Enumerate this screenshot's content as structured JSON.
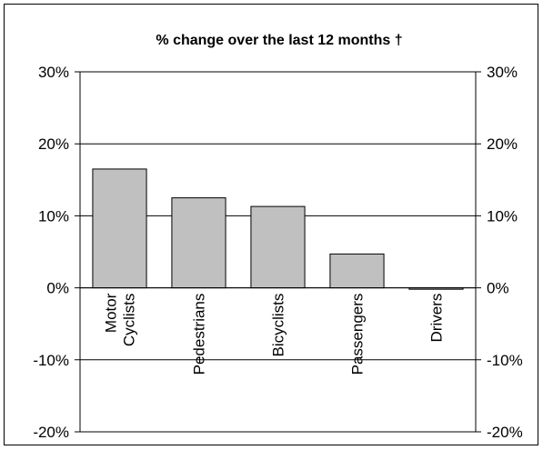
{
  "chart_data": {
    "type": "bar",
    "title": "% change over the last 12 months †",
    "xlabel": "",
    "ylabel": "",
    "categories": [
      [
        "Motor",
        "Cyclists"
      ],
      [
        "Pedestrians"
      ],
      [
        "Bicyclists"
      ],
      [
        "Passengers"
      ],
      [
        "Drivers"
      ]
    ],
    "values": [
      16.5,
      12.5,
      11.3,
      4.7,
      -0.2
    ],
    "ylim": [
      -20,
      30
    ],
    "yticks": [
      "-20%",
      "-10%",
      "0%",
      "10%",
      "20%",
      "30%"
    ],
    "ytick_values": [
      -20,
      -10,
      0,
      10,
      20,
      30
    ],
    "grid": true,
    "secondary_axis": true,
    "legend": "none",
    "colors": {
      "bar_fill": "#c0c0c0",
      "bar_stroke": "#000000",
      "grid": "#000000"
    }
  }
}
